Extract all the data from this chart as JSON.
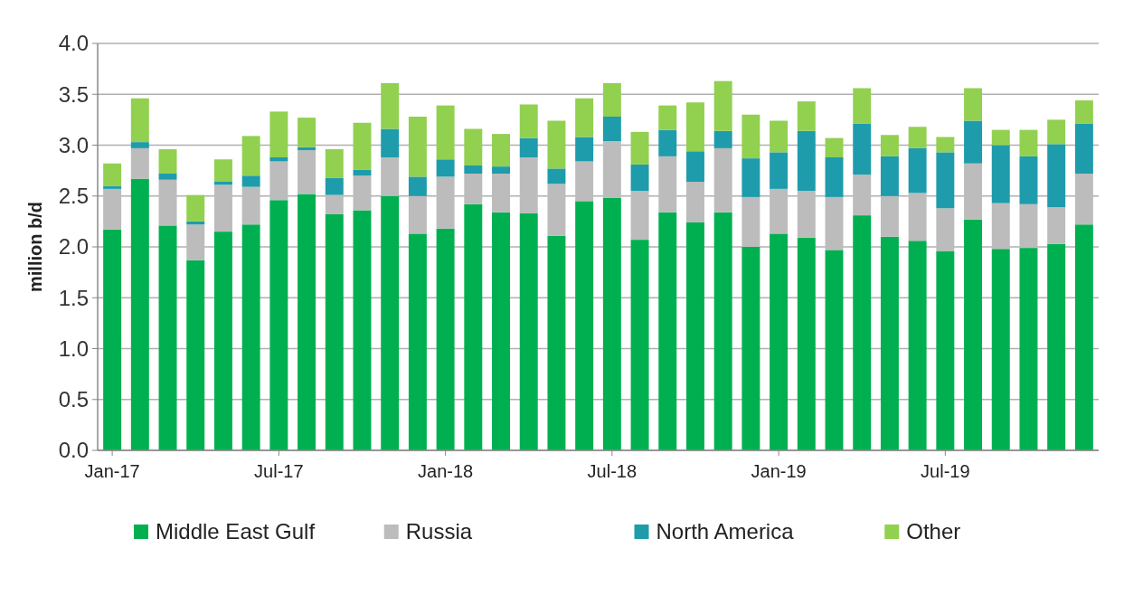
{
  "chart_data": {
    "type": "bar",
    "stacked": true,
    "ylabel": "million b/d",
    "ylim": [
      0,
      4
    ],
    "yticks": [
      {
        "value": 0,
        "label": "0.0"
      },
      {
        "value": 0.5,
        "label": "0.5"
      },
      {
        "value": 1,
        "label": "1.0"
      },
      {
        "value": 1.5,
        "label": "1.5"
      },
      {
        "value": 2,
        "label": "2.0"
      },
      {
        "value": 2.5,
        "label": "2.5"
      },
      {
        "value": 3,
        "label": "3.0"
      },
      {
        "value": 3.5,
        "label": "3.5"
      },
      {
        "value": 4,
        "label": "4.0"
      }
    ],
    "grid": "y",
    "legend": "bottom",
    "categories": [
      "Jan-17",
      null,
      null,
      null,
      null,
      null,
      "Jul-17",
      null,
      null,
      null,
      null,
      null,
      "Jan-18",
      null,
      null,
      null,
      null,
      null,
      "Jul-18",
      null,
      null,
      null,
      null,
      null,
      "Jan-19",
      null,
      null,
      null,
      null,
      null,
      "Jul-19",
      null,
      null,
      null,
      null,
      null
    ],
    "series": [
      {
        "name": "Middle East Gulf",
        "color": "#00b050",
        "values": [
          2.17,
          2.67,
          2.21,
          1.87,
          2.15,
          2.22,
          2.46,
          2.52,
          2.32,
          2.36,
          2.5,
          2.13,
          2.18,
          2.42,
          2.34,
          2.33,
          2.11,
          2.45,
          2.48,
          2.07,
          2.34,
          2.24,
          2.34,
          2.0,
          2.13,
          2.09,
          1.97,
          2.31,
          2.1,
          2.06,
          1.96,
          2.27,
          1.98,
          1.99,
          2.03,
          2.22
        ]
      },
      {
        "name": "Russia",
        "color": "#bcbcbc",
        "values": [
          0.4,
          0.3,
          0.45,
          0.35,
          0.46,
          0.37,
          0.38,
          0.43,
          0.19,
          0.34,
          0.38,
          0.37,
          0.51,
          0.3,
          0.38,
          0.55,
          0.51,
          0.39,
          0.56,
          0.48,
          0.55,
          0.4,
          0.63,
          0.49,
          0.44,
          0.46,
          0.52,
          0.4,
          0.4,
          0.47,
          0.42,
          0.55,
          0.45,
          0.43,
          0.36,
          0.5
        ]
      },
      {
        "name": "North America",
        "color": "#1e9cac",
        "values": [
          0.03,
          0.06,
          0.06,
          0.03,
          0.03,
          0.11,
          0.04,
          0.03,
          0.17,
          0.06,
          0.28,
          0.19,
          0.17,
          0.08,
          0.07,
          0.19,
          0.15,
          0.24,
          0.24,
          0.26,
          0.26,
          0.3,
          0.17,
          0.38,
          0.36,
          0.59,
          0.39,
          0.5,
          0.39,
          0.44,
          0.55,
          0.42,
          0.57,
          0.47,
          0.62,
          0.49
        ]
      },
      {
        "name": "Other",
        "color": "#92d050",
        "values": [
          0.22,
          0.43,
          0.24,
          0.26,
          0.22,
          0.39,
          0.45,
          0.29,
          0.28,
          0.46,
          0.45,
          0.59,
          0.53,
          0.36,
          0.32,
          0.33,
          0.47,
          0.38,
          0.33,
          0.32,
          0.24,
          0.48,
          0.49,
          0.43,
          0.31,
          0.29,
          0.19,
          0.35,
          0.21,
          0.21,
          0.15,
          0.32,
          0.15,
          0.26,
          0.24,
          0.23
        ]
      }
    ]
  }
}
